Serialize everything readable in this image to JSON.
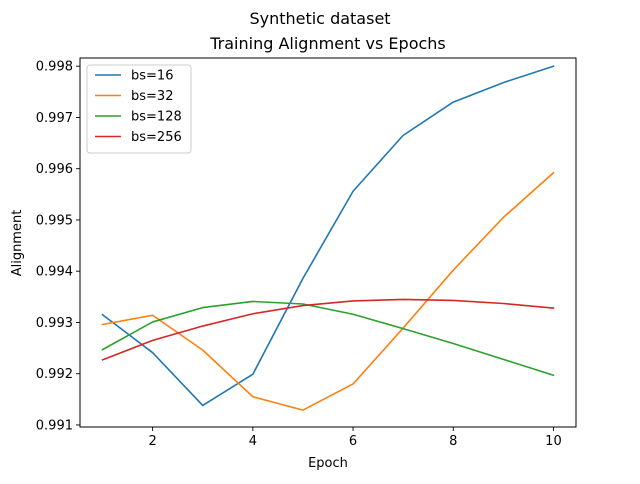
{
  "chart_data": {
    "type": "line",
    "suptitle": "Synthetic dataset",
    "title": "Training Alignment vs Epochs",
    "xlabel": "Epoch",
    "ylabel": "Alignment",
    "xlim": [
      0.55,
      10.45
    ],
    "ylim": [
      0.99096,
      0.99816
    ],
    "xticks": [
      2,
      4,
      6,
      8,
      10
    ],
    "yticks": [
      0.991,
      0.992,
      0.993,
      0.994,
      0.995,
      0.996,
      0.997,
      0.998
    ],
    "legend_position": "top-left",
    "grid": false,
    "x": [
      1,
      2,
      3,
      4,
      5,
      6,
      7,
      8,
      9,
      10
    ],
    "series": [
      {
        "name": "bs=16",
        "color": "#1f77b4",
        "values": [
          0.99315,
          0.99241,
          0.99138,
          0.99199,
          0.99386,
          0.99556,
          0.99665,
          0.9973,
          0.99768,
          0.998
        ]
      },
      {
        "name": "bs=32",
        "color": "#ff7f0e",
        "values": [
          0.99296,
          0.99314,
          0.99246,
          0.99155,
          0.99129,
          0.9918,
          0.99289,
          0.99402,
          0.99505,
          0.99592
        ]
      },
      {
        "name": "bs=128",
        "color": "#2ca02c",
        "values": [
          0.99247,
          0.99301,
          0.99329,
          0.99341,
          0.99336,
          0.99316,
          0.99288,
          0.99259,
          0.99228,
          0.99197
        ]
      },
      {
        "name": "bs=256",
        "color": "#d62728",
        "values": [
          0.99227,
          0.99265,
          0.99293,
          0.99317,
          0.99333,
          0.99342,
          0.99345,
          0.99343,
          0.99337,
          0.99328
        ]
      }
    ]
  }
}
